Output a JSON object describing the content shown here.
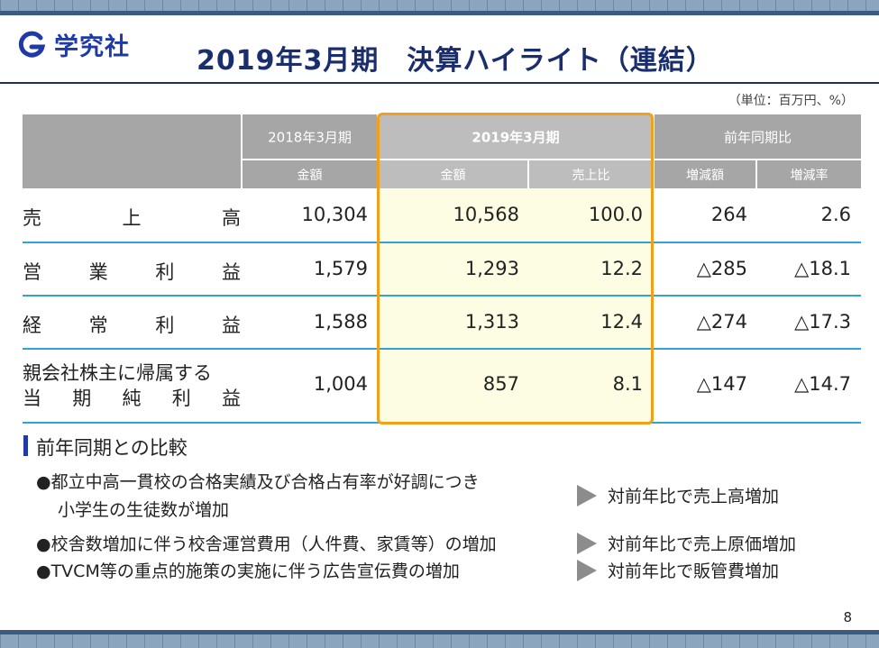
{
  "header": {
    "logo_text": "学究社",
    "title": "2019年3月期　決算ハイライト（連結）",
    "unit_note": "（単位：百万円、%）"
  },
  "table": {
    "col_2018": "2018年3月期",
    "col_2019": "2019年3月期",
    "col_yoy": "前年同期比",
    "sub_amount_2018": "金額",
    "sub_amount_2019": "金額",
    "sub_sales_ratio": "売上比",
    "sub_change": "増減額",
    "sub_change_rate": "増減率",
    "rows": [
      {
        "label_chars": [
          "売",
          "上",
          "高"
        ],
        "v2018": "10,304",
        "v2019": "10,568",
        "ratio": "100.0",
        "change": "264",
        "rate": "2.6"
      },
      {
        "label_chars": [
          "営",
          "業",
          "利",
          "益"
        ],
        "v2018": "1,579",
        "v2019": "1,293",
        "ratio": "12.2",
        "change": "△285",
        "rate": "△18.1"
      },
      {
        "label_chars": [
          "経",
          "常",
          "利",
          "益"
        ],
        "v2018": "1,588",
        "v2019": "1,313",
        "ratio": "12.4",
        "change": "△274",
        "rate": "△17.3"
      },
      {
        "label_line1": "親会社株主に帰属する",
        "label_chars": [
          "当",
          "期",
          "純",
          "利",
          "益"
        ],
        "v2018": "1,004",
        "v2019": "857",
        "ratio": "8.1",
        "change": "△147",
        "rate": "△14.7"
      }
    ]
  },
  "comparison": {
    "title": "前年同期との比較",
    "items": [
      {
        "line1": "●都立中高一貫校の合格実績及び合格占有率が好調につき",
        "line2": "小学生の生徒数が増加",
        "result": "対前年比で売上高増加"
      },
      {
        "line1": "●校舎数増加に伴う校舎運営費用（人件費、家賃等）の増加",
        "result": "対前年比で売上原価増加"
      },
      {
        "line1": "●TVCM等の重点的施策の実施に伴う広告宣伝費の増加",
        "result": "対前年比で販管費増加"
      }
    ]
  },
  "page_number": "8",
  "colors": {
    "brand_blue": "#1f3aa8",
    "title_navy": "#1a2e6e",
    "highlight_orange": "#f2a01a",
    "row_rule": "#2fa3d1",
    "header_gray": "#a6a6a6"
  }
}
